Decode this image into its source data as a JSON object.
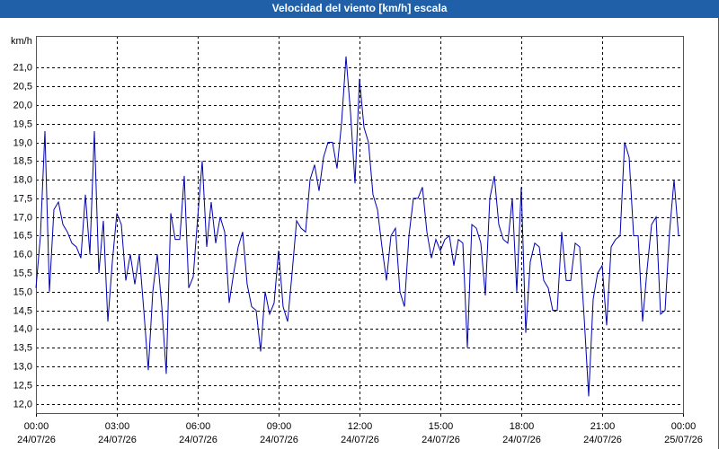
{
  "chart_data": {
    "type": "line",
    "title": "Velocidad del viento [km/h] escala",
    "y_label": "km/h",
    "color": "#0000b0",
    "grid": true,
    "x": [
      0,
      10,
      20,
      30,
      40,
      50,
      60,
      70,
      80,
      90,
      100,
      110,
      120,
      130,
      140,
      150,
      160,
      170,
      180,
      190,
      200,
      210,
      220,
      230,
      240,
      250,
      260,
      270,
      280,
      290,
      300,
      310,
      320,
      330,
      340,
      350,
      360,
      370,
      380,
      390,
      400,
      410,
      420,
      430,
      440,
      450,
      460,
      470,
      480,
      490,
      500,
      510,
      520,
      530,
      540,
      550,
      560,
      570,
      580,
      590,
      600,
      610,
      620,
      630,
      640,
      650,
      660,
      670,
      680,
      690,
      700,
      710,
      720,
      730,
      740,
      750,
      760,
      770,
      780,
      790,
      800,
      810,
      820,
      830,
      840,
      850,
      860,
      870,
      880,
      890,
      900,
      910,
      920,
      930,
      940,
      950,
      960,
      970,
      980,
      990,
      1000,
      1010,
      1020,
      1030,
      1040,
      1050,
      1060,
      1070,
      1080,
      1090,
      1100,
      1110,
      1120,
      1130,
      1140,
      1150,
      1160,
      1170,
      1180,
      1190,
      1200,
      1210,
      1220,
      1230,
      1240,
      1250,
      1260,
      1270,
      1280,
      1290,
      1300,
      1310,
      1320,
      1330,
      1340,
      1350,
      1360,
      1370,
      1380,
      1390,
      1400,
      1410,
      1420,
      1430
    ],
    "values": [
      15.1,
      16.5,
      19.3,
      15.0,
      17.2,
      17.4,
      16.8,
      16.6,
      16.3,
      16.2,
      15.9,
      17.6,
      16.0,
      19.3,
      15.5,
      16.9,
      14.2,
      15.8,
      17.1,
      16.8,
      15.3,
      16.0,
      15.2,
      16.0,
      14.5,
      12.9,
      15.0,
      16.0,
      14.6,
      12.8,
      17.1,
      16.4,
      16.4,
      18.1,
      15.1,
      15.4,
      17.0,
      18.5,
      16.2,
      17.4,
      16.3,
      17.0,
      16.6,
      14.7,
      15.5,
      16.2,
      16.6,
      15.2,
      14.6,
      14.5,
      13.4,
      15.0,
      14.4,
      14.7,
      16.1,
      14.6,
      14.2,
      15.5,
      16.9,
      16.7,
      16.6,
      18.0,
      18.4,
      17.7,
      18.6,
      19.0,
      19.0,
      18.3,
      19.5,
      21.3,
      19.8,
      17.9,
      20.7,
      19.4,
      19.0,
      17.6,
      17.2,
      16.2,
      15.3,
      16.5,
      16.7,
      15.0,
      14.6,
      16.5,
      17.5,
      17.5,
      17.8,
      16.6,
      15.9,
      16.4,
      16.1,
      16.4,
      16.5,
      15.7,
      16.4,
      16.3,
      13.5,
      16.8,
      16.7,
      16.3,
      14.9,
      17.5,
      18.1,
      16.8,
      16.4,
      16.3,
      17.5,
      15.0,
      17.8,
      13.9,
      15.8,
      16.3,
      16.2,
      15.3,
      15.1,
      14.5,
      14.5,
      16.6,
      15.3,
      15.3,
      16.3,
      16.2,
      14.3,
      12.2,
      14.8,
      15.5,
      15.7,
      14.1,
      16.2,
      16.4,
      16.5,
      19.0,
      18.6,
      16.5,
      16.5,
      14.2,
      15.6,
      16.8,
      17.0,
      14.4,
      14.5,
      16.6,
      18.0,
      16.5
    ],
    "xlim": [
      0,
      1440
    ],
    "xticks": [
      {
        "value": 0,
        "label": "00:00"
      },
      {
        "value": 180,
        "label": "03:00"
      },
      {
        "value": 360,
        "label": "06:00"
      },
      {
        "value": 540,
        "label": "09:00"
      },
      {
        "value": 720,
        "label": "12:00"
      },
      {
        "value": 900,
        "label": "15:00"
      },
      {
        "value": 1080,
        "label": "18:00"
      },
      {
        "value": 1260,
        "label": "21:00"
      },
      {
        "value": 1440,
        "label": "00:00"
      }
    ],
    "xtick_dates": [
      "24/07/26",
      "24/07/26",
      "24/07/26",
      "24/07/26",
      "24/07/26",
      "24/07/26",
      "24/07/26",
      "24/07/26",
      "25/07/26"
    ],
    "ylim": [
      11.75,
      21.85
    ],
    "yticks": [
      {
        "value": 12,
        "label": "12,0"
      },
      {
        "value": 12.5,
        "label": "12,5"
      },
      {
        "value": 13,
        "label": "13,0"
      },
      {
        "value": 13.5,
        "label": "13,5"
      },
      {
        "value": 14,
        "label": "14,0"
      },
      {
        "value": 14.5,
        "label": "14,5"
      },
      {
        "value": 15,
        "label": "15,0"
      },
      {
        "value": 15.5,
        "label": "15,5"
      },
      {
        "value": 16,
        "label": "16,0"
      },
      {
        "value": 16.5,
        "label": "16,5"
      },
      {
        "value": 17,
        "label": "17,0"
      },
      {
        "value": 17.5,
        "label": "17,5"
      },
      {
        "value": 18,
        "label": "18,0"
      },
      {
        "value": 18.5,
        "label": "18,5"
      },
      {
        "value": 19,
        "label": "19,0"
      },
      {
        "value": 19.5,
        "label": "19,5"
      },
      {
        "value": 20,
        "label": "20,0"
      },
      {
        "value": 20.5,
        "label": "20,5"
      },
      {
        "value": 21,
        "label": "21,0"
      }
    ]
  }
}
